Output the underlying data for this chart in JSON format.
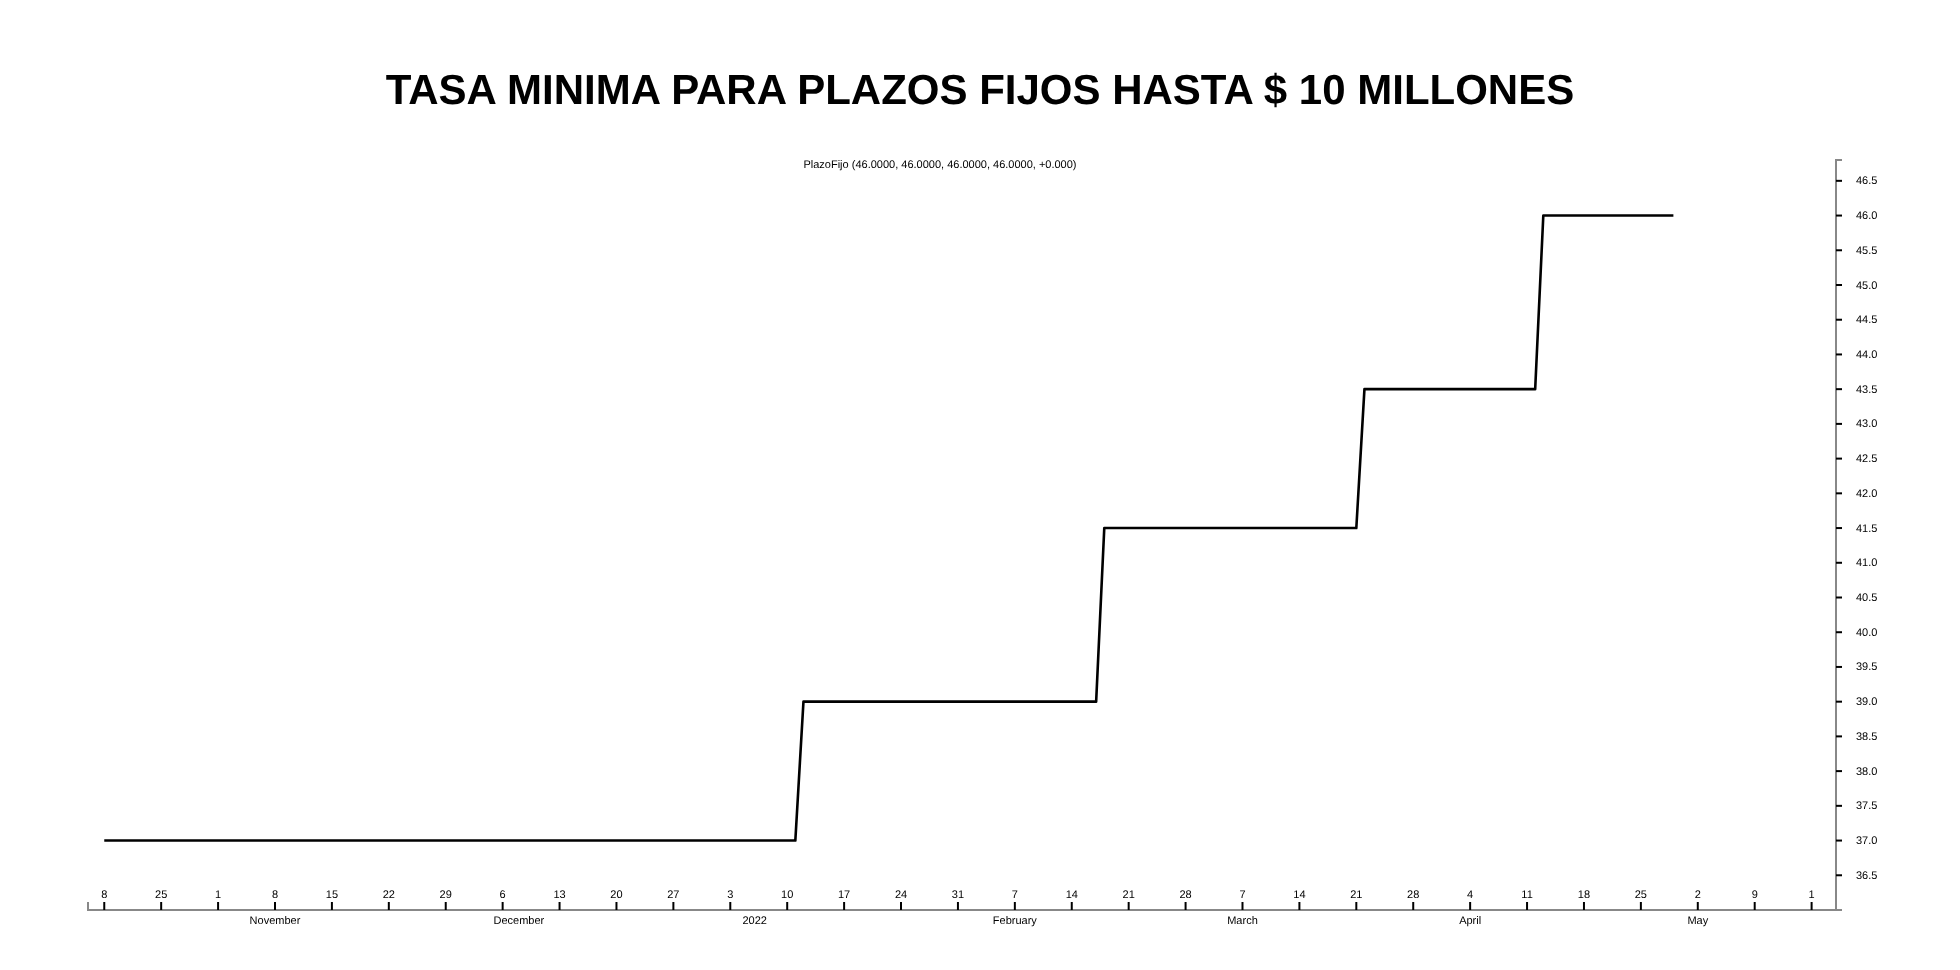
{
  "chart_data": {
    "type": "line",
    "title": "TASA MINIMA PARA PLAZOS FIJOS HASTA $ 10 MILLONES",
    "subtitle": "PlazoFijo (46.0000, 46.0000, 46.0000, 46.0000, +0.000)",
    "series": [
      {
        "color": "#000000",
        "x": [
          "2021-10-18",
          "2022-01-11",
          "2022-01-12",
          "2022-02-17",
          "2022-02-18",
          "2022-03-21",
          "2022-03-22",
          "2022-04-12",
          "2022-04-13",
          "2022-04-29"
        ],
        "values": [
          37,
          37,
          39,
          39,
          41.5,
          41.5,
          43.5,
          43.5,
          46,
          46
        ]
      }
    ],
    "xlim": [
      "2021-10-16",
      "2022-05-19"
    ],
    "xticks": [
      {
        "value": "2021-10-18",
        "label": "8"
      },
      {
        "value": "2021-10-25",
        "label": "25"
      },
      {
        "value": "2021-11-01",
        "label": "1"
      },
      {
        "value": "2021-11-08",
        "label": "8"
      },
      {
        "value": "2021-11-15",
        "label": "15"
      },
      {
        "value": "2021-11-22",
        "label": "22"
      },
      {
        "value": "2021-11-29",
        "label": "29"
      },
      {
        "value": "2021-12-06",
        "label": "6"
      },
      {
        "value": "2021-12-13",
        "label": "13"
      },
      {
        "value": "2021-12-20",
        "label": "20"
      },
      {
        "value": "2021-12-27",
        "label": "27"
      },
      {
        "value": "2022-01-03",
        "label": "3"
      },
      {
        "value": "2022-01-10",
        "label": "10"
      },
      {
        "value": "2022-01-17",
        "label": "17"
      },
      {
        "value": "2022-01-24",
        "label": "24"
      },
      {
        "value": "2022-01-31",
        "label": "31"
      },
      {
        "value": "2022-02-07",
        "label": "7"
      },
      {
        "value": "2022-02-14",
        "label": "14"
      },
      {
        "value": "2022-02-21",
        "label": "21"
      },
      {
        "value": "2022-02-28",
        "label": "28"
      },
      {
        "value": "2022-03-07",
        "label": "7"
      },
      {
        "value": "2022-03-14",
        "label": "14"
      },
      {
        "value": "2022-03-21",
        "label": "21"
      },
      {
        "value": "2022-03-28",
        "label": "28"
      },
      {
        "value": "2022-04-04",
        "label": "4"
      },
      {
        "value": "2022-04-11",
        "label": "11"
      },
      {
        "value": "2022-04-18",
        "label": "18"
      },
      {
        "value": "2022-04-25",
        "label": "25"
      },
      {
        "value": "2022-05-02",
        "label": "2"
      },
      {
        "value": "2022-05-09",
        "label": "9"
      },
      {
        "value": "2022-05-16",
        "label": "1"
      }
    ],
    "x2lim": [
      "2021-10-16",
      "2022-05-19"
    ],
    "x2ticks": [
      {
        "value": "2021-11-08",
        "label": "November"
      },
      {
        "value": "2021-12-08",
        "label": "December"
      },
      {
        "value": "2022-01-06",
        "label": "2022"
      },
      {
        "value": "2022-02-07",
        "label": "February"
      },
      {
        "value": "2022-03-07",
        "label": "March"
      },
      {
        "value": "2022-04-04",
        "label": "April"
      },
      {
        "value": "2022-05-02",
        "label": "May"
      }
    ],
    "ylim": [
      36.0,
      46.8
    ],
    "yticks": [
      {
        "value": 36.5,
        "label": "36.5"
      },
      {
        "value": 37,
        "label": "37.0"
      },
      {
        "value": 37.5,
        "label": "37.5"
      },
      {
        "value": 38,
        "label": "38.0"
      },
      {
        "value": 38.5,
        "label": "38.5"
      },
      {
        "value": 39,
        "label": "39.0"
      },
      {
        "value": 39.5,
        "label": "39.5"
      },
      {
        "value": 40,
        "label": "40.0"
      },
      {
        "value": 40.5,
        "label": "40.5"
      },
      {
        "value": 41,
        "label": "41.0"
      },
      {
        "value": 41.5,
        "label": "41.5"
      },
      {
        "value": 42,
        "label": "42.0"
      },
      {
        "value": 42.5,
        "label": "42.5"
      },
      {
        "value": 43,
        "label": "43.0"
      },
      {
        "value": 43.5,
        "label": "43.5"
      },
      {
        "value": 44,
        "label": "44.0"
      },
      {
        "value": 44.5,
        "label": "44.5"
      },
      {
        "value": 45,
        "label": "45.0"
      },
      {
        "value": 45.5,
        "label": "45.5"
      },
      {
        "value": 46,
        "label": "46.0"
      },
      {
        "value": 46.5,
        "label": "46.5"
      }
    ],
    "grid": false,
    "marker": "none",
    "line_style": "solid"
  }
}
